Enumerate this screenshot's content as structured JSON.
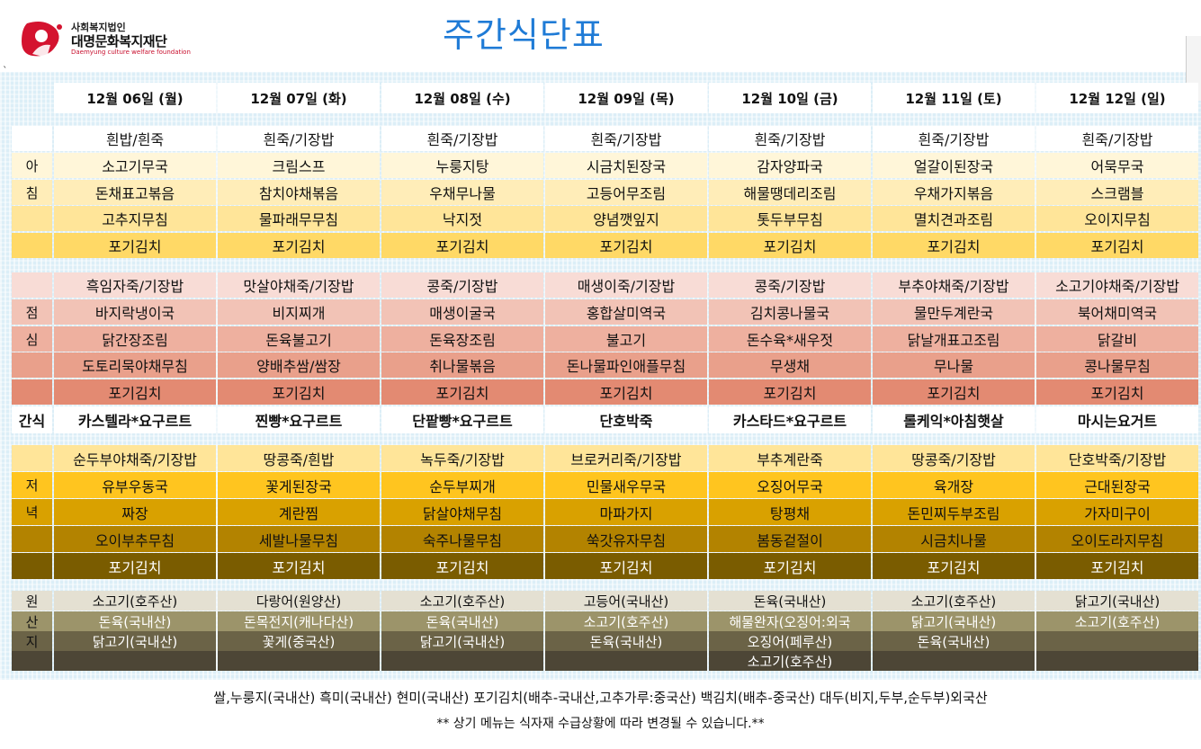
{
  "header": {
    "org_top": "사회복지법인",
    "org_name": "대명문화복지재단",
    "org_en": "Daemyung culture welfare foundation",
    "title": "주간식단표",
    "stray_mark": "`"
  },
  "days": [
    "12월 06일 (월)",
    "12월 07일 (화)",
    "12월 08일 (수)",
    "12월 09일 (목)",
    "12월 10일 (금)",
    "12월 11일 (토)",
    "12월 12일 (일)"
  ],
  "sections": {
    "breakfast": {
      "labels": [
        "",
        "아",
        "침",
        "",
        ""
      ],
      "rows": [
        [
          "흰밥/흰죽",
          "흰죽/기장밥",
          "흰죽/기장밥",
          "흰죽/기장밥",
          "흰죽/기장밥",
          "흰죽/기장밥",
          "흰죽/기장밥"
        ],
        [
          "소고기무국",
          "크림스프",
          "누룽지탕",
          "시금치된장국",
          "감자양파국",
          "얼갈이된장국",
          "어묵무국"
        ],
        [
          "돈채표고볶음",
          "참치야채볶음",
          "우채무나물",
          "고등어무조림",
          "해물땡데리조림",
          "우채가지볶음",
          "스크램블"
        ],
        [
          "고추지무침",
          "물파래무무침",
          "낙지젓",
          "양념깻잎지",
          "톳두부무침",
          "멸치견과조림",
          "오이지무침"
        ],
        [
          "포기김치",
          "포기김치",
          "포기김치",
          "포기김치",
          "포기김치",
          "포기김치",
          "포기김치"
        ]
      ]
    },
    "lunch": {
      "labels": [
        "",
        "점",
        "심",
        "",
        ""
      ],
      "rows": [
        [
          "흑임자죽/기장밥",
          "맛살야채죽/기장밥",
          "콩죽/기장밥",
          "매생이죽/기장밥",
          "콩죽/기장밥",
          "부추야채죽/기장밥",
          "소고기야채죽/기장밥"
        ],
        [
          "바지락냉이국",
          "비지찌개",
          "매생이굴국",
          "홍합살미역국",
          "김치콩나물국",
          "물만두계란국",
          "북어채미역국"
        ],
        [
          "닭간장조림",
          "돈육불고기",
          "돈육장조림",
          "불고기",
          "돈수육*새우젓",
          "닭날개표고조림",
          "닭갈비"
        ],
        [
          "도토리묵야채무침",
          "양배추쌈/쌈장",
          "취나물볶음",
          "돈나물파인애플무침",
          "무생채",
          "무나물",
          "콩나물무침"
        ],
        [
          "포기김치",
          "포기김치",
          "포기김치",
          "포기김치",
          "포기김치",
          "포기김치",
          "포기김치"
        ]
      ]
    },
    "snack": {
      "label": "간식",
      "row": [
        "카스텔라*요구르트",
        "찐빵*요구르트",
        "단팥빵*요구르트",
        "단호박죽",
        "카스타드*요구르트",
        "롤케익*아침햇살",
        "마시는요거트"
      ]
    },
    "dinner": {
      "labels": [
        "",
        "저",
        "녁",
        "",
        ""
      ],
      "rows": [
        [
          "순두부야채죽/기장밥",
          "땅콩죽/흰밥",
          "녹두죽/기장밥",
          "브로커리죽/기장밥",
          "부추계란죽",
          "땅콩죽/기장밥",
          "단호박죽/기장밥"
        ],
        [
          "유부우동국",
          "꽃게된장국",
          "순두부찌개",
          "민물새우무국",
          "오징어무국",
          "육개장",
          "근대된장국"
        ],
        [
          "짜장",
          "계란찜",
          "닭살야채무침",
          "마파가지",
          "탕평채",
          "돈민찌두부조림",
          "가자미구이"
        ],
        [
          "오이부추무침",
          "세발나물무침",
          "숙주나물무침",
          "쑥갓유자무침",
          "봄동겉절이",
          "시금치나물",
          "오이도라지무침"
        ],
        [
          "포기김치",
          "포기김치",
          "포기김치",
          "포기김치",
          "포기김치",
          "포기김치",
          "포기김치"
        ]
      ]
    },
    "origin": {
      "labels": [
        "원",
        "산",
        "지",
        ""
      ],
      "rows": [
        [
          "소고기(호주산)",
          "다랑어(원양산)",
          "소고기(호주산)",
          "고등어(국내산)",
          "돈육(국내산)",
          "소고기(호주산)",
          "닭고기(국내산)"
        ],
        [
          "돈육(국내산)",
          "돈목전지(캐나다산)",
          "돈육(국내산)",
          "소고기(호주산)",
          "해물완자(오징어:외국",
          "닭고기(국내산)",
          "소고기(호주산)"
        ],
        [
          "닭고기(국내산)",
          "꽃게(중국산)",
          "닭고기(국내산)",
          "돈육(국내산)",
          "오징어(페루산)",
          "돈육(국내산)",
          ""
        ],
        [
          "",
          "",
          "",
          "",
          "소고기(호주산)",
          "",
          ""
        ]
      ]
    }
  },
  "colors": {
    "breakfast": [
      "#ffffff",
      "#fff6d9",
      "#ffedb8",
      "#ffe599",
      "#ffd966"
    ],
    "lunch": [
      "#f8dcd6",
      "#f2c3b6",
      "#eeb09f",
      "#e9a08b",
      "#e38a72"
    ],
    "dinner": [
      "#ffe599",
      "#ffc51f",
      "#d9a100",
      "#b38300",
      "#7a5c00"
    ],
    "origin": [
      "#e4e0d2",
      "#9c946a",
      "#6b6347",
      "#4d4636"
    ]
  },
  "footer": {
    "line1": "쌀,누룽지(국내산) 흑미(국내산) 현미(국내산) 포기김치(배추-국내산,고추가루:중국산) 백김치(배추-중국산) 대두(비지,두부,순두부)외국산",
    "line2": "** 상기 메뉴는 식자재 수급상황에 따라 변경될 수 있습니다.**"
  }
}
